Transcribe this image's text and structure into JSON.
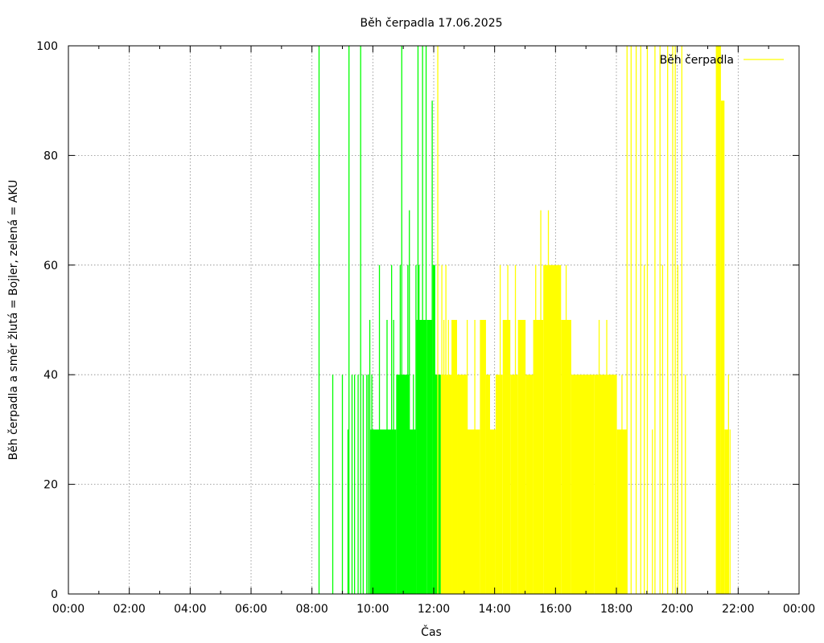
{
  "chart_data": {
    "type": "bar",
    "title": "Běh čerpadla 17.06.2025",
    "xlabel": "Čas",
    "ylabel": "Běh čerpadla a směr žlutá = Bojler, zelená = AKU",
    "xlim_hours": [
      0,
      24
    ],
    "ylim": [
      0,
      100
    ],
    "x_ticks": [
      "00:00",
      "02:00",
      "04:00",
      "06:00",
      "08:00",
      "10:00",
      "12:00",
      "14:00",
      "16:00",
      "18:00",
      "20:00",
      "22:00",
      "00:00"
    ],
    "y_ticks": [
      0,
      20,
      40,
      60,
      80,
      100
    ],
    "grid": true,
    "legend": {
      "position": "top-right",
      "entries": [
        {
          "label": "Běh čerpadla",
          "color": "#ffff00"
        }
      ]
    },
    "series": [
      {
        "name": "AKU",
        "color": "#00ff00",
        "spikes": [
          [
            "08:14",
            100
          ],
          [
            "08:41",
            40
          ],
          [
            "09:00",
            40
          ],
          [
            "09:11",
            30
          ],
          [
            "09:13",
            100
          ],
          [
            "09:19",
            40
          ],
          [
            "09:24",
            40
          ],
          [
            "09:31",
            40
          ],
          [
            "09:36",
            100
          ],
          [
            "09:41",
            40
          ],
          [
            "09:48",
            40
          ],
          [
            "09:51",
            40
          ],
          [
            "09:54",
            50
          ],
          [
            "09:58",
            40
          ],
          [
            "10:13",
            60
          ],
          [
            "10:28",
            50
          ],
          [
            "10:37",
            60
          ],
          [
            "10:41",
            50
          ],
          [
            "10:54",
            60
          ],
          [
            "10:57",
            100
          ],
          [
            "10:58",
            40
          ],
          [
            "11:09",
            60
          ],
          [
            "11:12",
            70
          ],
          [
            "11:20",
            40
          ],
          [
            "11:25",
            60
          ],
          [
            "11:29",
            100
          ],
          [
            "11:31",
            60
          ],
          [
            "11:38",
            100
          ],
          [
            "11:45",
            100
          ],
          [
            "11:49",
            40
          ],
          [
            "11:57",
            90
          ],
          [
            "12:03",
            40
          ],
          [
            "12:07",
            30
          ]
        ],
        "blocks": [
          [
            "09:55",
            "10:46",
            30
          ],
          [
            "10:46",
            "11:12",
            40
          ],
          [
            "11:12",
            "11:26",
            30
          ],
          [
            "11:26",
            "11:47",
            50
          ],
          [
            "11:47",
            "11:58",
            50
          ],
          [
            "11:58",
            "12:03",
            60
          ],
          [
            "12:03",
            "12:14",
            40
          ]
        ]
      },
      {
        "name": "Bojler",
        "color": "#ffff00",
        "spikes": [
          [
            "12:08",
            100
          ],
          [
            "12:16",
            60
          ],
          [
            "12:20",
            50
          ],
          [
            "12:24",
            60
          ],
          [
            "12:29",
            50
          ],
          [
            "12:36",
            40
          ],
          [
            "13:06",
            50
          ],
          [
            "13:21",
            50
          ],
          [
            "13:36",
            40
          ],
          [
            "14:06",
            40
          ],
          [
            "14:11",
            60
          ],
          [
            "14:26",
            60
          ],
          [
            "14:41",
            60
          ],
          [
            "14:56",
            50
          ],
          [
            "15:21",
            60
          ],
          [
            "15:31",
            70
          ],
          [
            "15:46",
            70
          ],
          [
            "16:06",
            60
          ],
          [
            "16:21",
            60
          ],
          [
            "16:46",
            40
          ],
          [
            "17:26",
            50
          ],
          [
            "17:41",
            50
          ],
          [
            "17:51",
            40
          ],
          [
            "18:11",
            40
          ],
          [
            "18:21",
            100
          ],
          [
            "18:29",
            100
          ],
          [
            "18:39",
            100
          ],
          [
            "18:48",
            100
          ],
          [
            "18:55",
            60
          ],
          [
            "19:01",
            100
          ],
          [
            "19:11",
            30
          ],
          [
            "19:16",
            100
          ],
          [
            "19:26",
            100
          ],
          [
            "19:31",
            60
          ],
          [
            "19:41",
            100
          ],
          [
            "19:51",
            100
          ],
          [
            "19:56",
            100
          ],
          [
            "20:01",
            60
          ],
          [
            "20:09",
            100
          ],
          [
            "20:16",
            40
          ],
          [
            "21:41",
            40
          ],
          [
            "21:44",
            30
          ]
        ],
        "blocks": [
          [
            "12:14",
            "12:35",
            40
          ],
          [
            "12:35",
            "12:46",
            50
          ],
          [
            "12:46",
            "13:06",
            40
          ],
          [
            "13:06",
            "13:31",
            30
          ],
          [
            "13:31",
            "13:43",
            50
          ],
          [
            "13:43",
            "13:51",
            40
          ],
          [
            "13:51",
            "14:02",
            30
          ],
          [
            "14:02",
            "14:16",
            40
          ],
          [
            "14:16",
            "14:31",
            50
          ],
          [
            "14:31",
            "14:46",
            40
          ],
          [
            "14:46",
            "15:01",
            50
          ],
          [
            "15:01",
            "15:16",
            40
          ],
          [
            "15:16",
            "15:36",
            50
          ],
          [
            "15:36",
            "16:11",
            60
          ],
          [
            "16:11",
            "16:31",
            50
          ],
          [
            "16:31",
            "17:16",
            40
          ],
          [
            "17:16",
            "17:41",
            40
          ],
          [
            "17:41",
            "18:01",
            40
          ],
          [
            "18:01",
            "18:21",
            30
          ],
          [
            "21:16",
            "21:26",
            100
          ],
          [
            "21:26",
            "21:33",
            90
          ],
          [
            "21:33",
            "21:42",
            30
          ]
        ]
      }
    ]
  }
}
